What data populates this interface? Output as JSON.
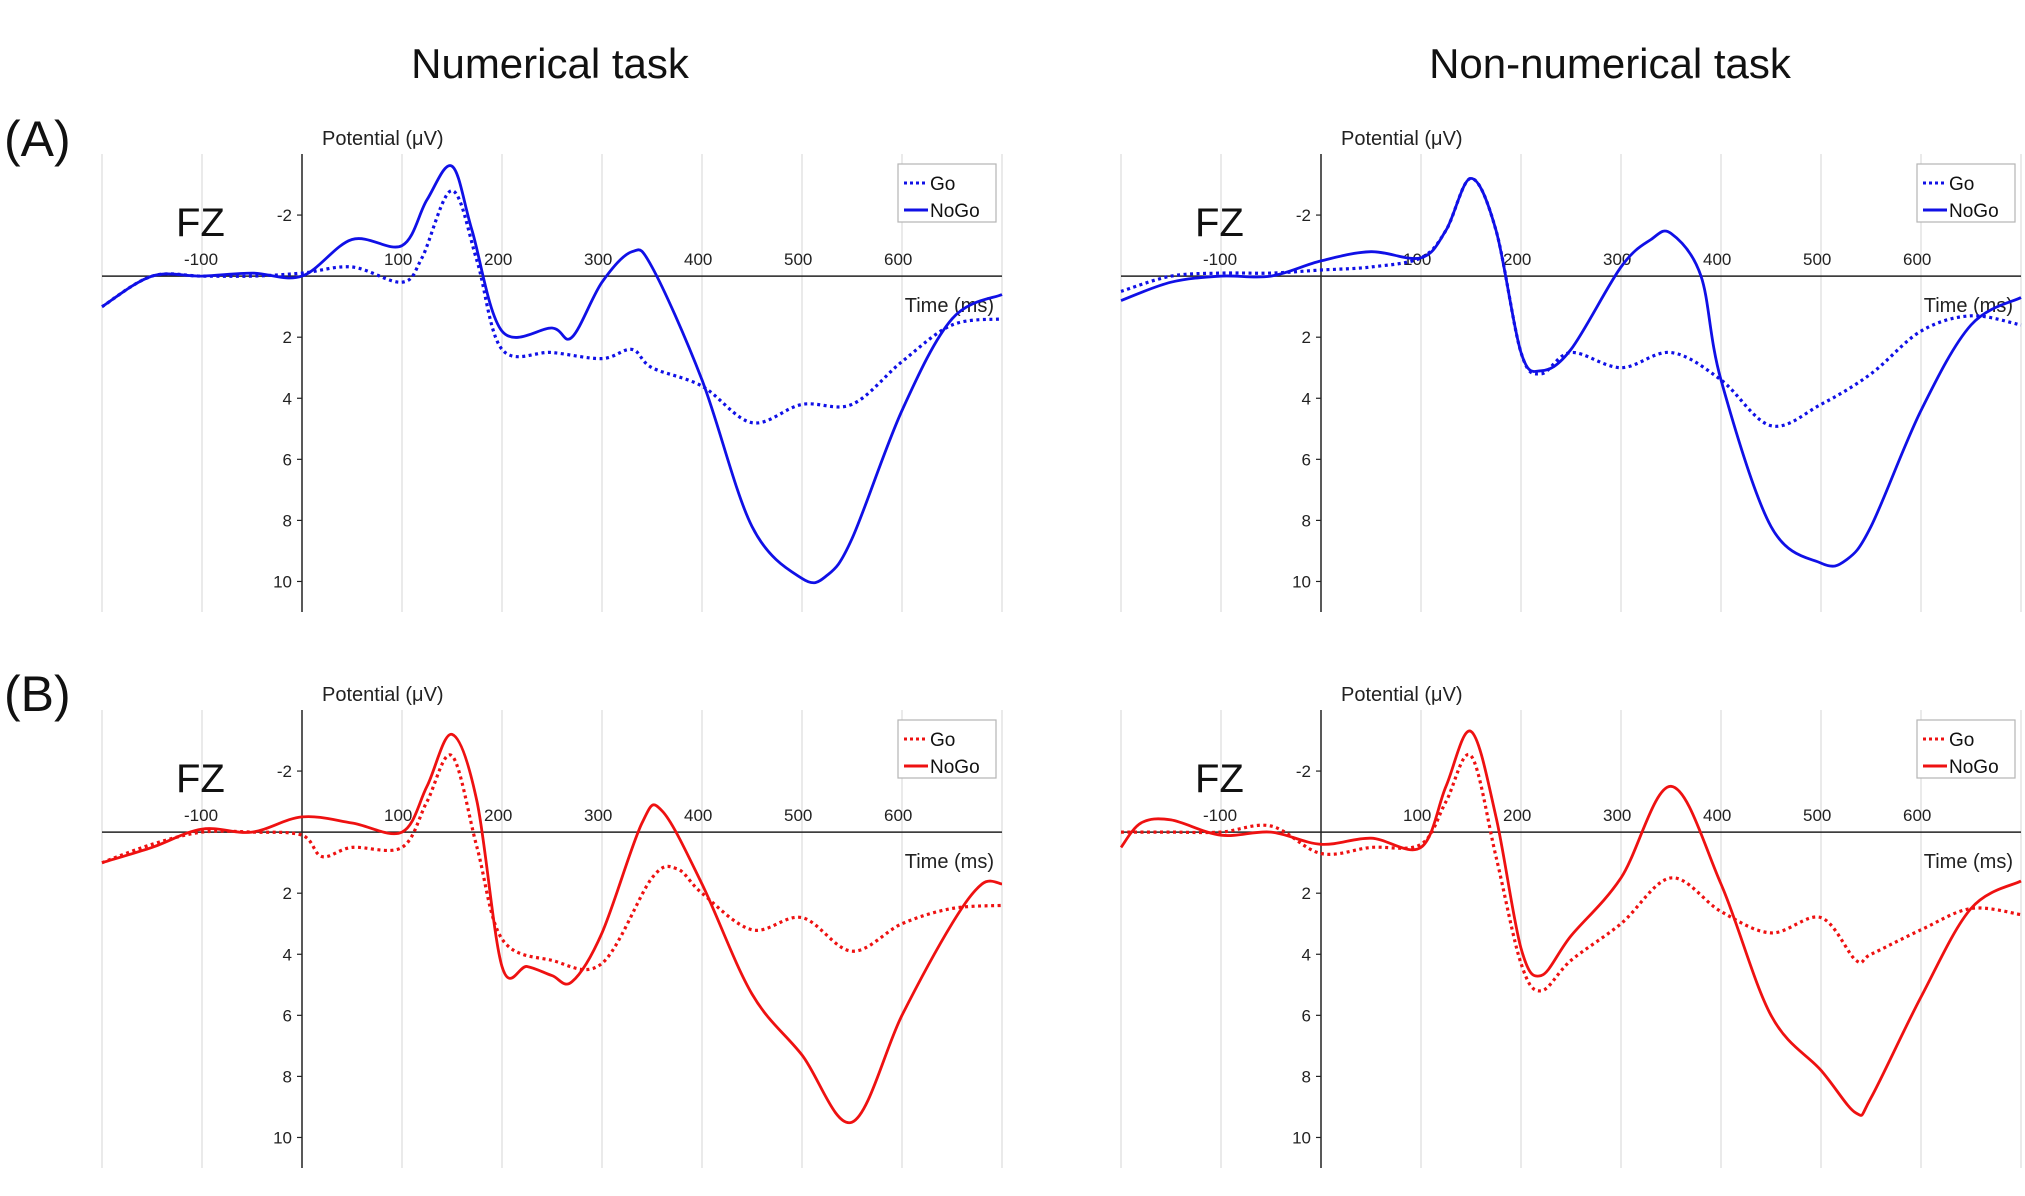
{
  "figure": {
    "columns": [
      "Numerical task",
      "Non-numerical task"
    ],
    "rows": [
      "(A)",
      "(B)"
    ]
  },
  "colors": {
    "row_a": "#1010e6",
    "row_b": "#ee1111",
    "axis": "#222222",
    "grid": "#dcdcdc"
  },
  "chart_data": [
    {
      "id": "A-numerical",
      "type": "line",
      "row": "(A)",
      "column": "Numerical task",
      "channel": "FZ",
      "xlabel": "Time (ms)",
      "ylabel": "Potential (μV)",
      "x_ticks": [
        -100,
        100,
        200,
        300,
        400,
        500,
        600
      ],
      "y_ticks": [
        -2,
        2,
        4,
        6,
        8,
        10
      ],
      "xlim": [
        -200,
        700
      ],
      "ylim": [
        -4,
        11
      ],
      "y_inverted": true,
      "grid": "vertical",
      "legend": "top-right",
      "series": [
        {
          "name": "Go",
          "style": "dotted",
          "x": [
            -200,
            -150,
            -100,
            -50,
            0,
            50,
            100,
            120,
            150,
            175,
            200,
            250,
            300,
            330,
            350,
            400,
            450,
            500,
            550,
            600,
            650,
            700
          ],
          "y": [
            1,
            0,
            0,
            0,
            -0.1,
            -0.3,
            0.2,
            -0.6,
            -2.8,
            -0.5,
            2.4,
            2.5,
            2.7,
            2.4,
            3,
            3.6,
            4.8,
            4.2,
            4.2,
            2.8,
            1.6,
            1.4
          ]
        },
        {
          "name": "NoGo",
          "style": "solid",
          "x": [
            -200,
            -150,
            -100,
            -50,
            0,
            50,
            100,
            125,
            150,
            170,
            200,
            250,
            270,
            300,
            330,
            350,
            400,
            450,
            500,
            525,
            550,
            600,
            650,
            700
          ],
          "y": [
            1,
            0,
            0,
            -0.1,
            0,
            -1.2,
            -1,
            -2.5,
            -3.6,
            -1.5,
            1.8,
            1.7,
            2,
            0.2,
            -0.8,
            -0.3,
            3.4,
            8.2,
            9.9,
            9.8,
            8.6,
            4.4,
            1.4,
            0.6
          ]
        }
      ]
    },
    {
      "id": "A-nonnumerical",
      "type": "line",
      "row": "(A)",
      "column": "Non-numerical task",
      "channel": "FZ",
      "xlabel": "Time (ms)",
      "ylabel": "Potential (μV)",
      "x_ticks": [
        -100,
        100,
        200,
        300,
        400,
        500,
        600
      ],
      "y_ticks": [
        -2,
        2,
        4,
        6,
        8,
        10
      ],
      "xlim": [
        -200,
        700
      ],
      "ylim": [
        -4,
        11
      ],
      "y_inverted": true,
      "grid": "vertical",
      "legend": "top-right",
      "series": [
        {
          "name": "Go",
          "style": "dotted",
          "x": [
            -200,
            -150,
            -100,
            -50,
            0,
            50,
            100,
            125,
            150,
            175,
            200,
            220,
            250,
            300,
            350,
            400,
            450,
            500,
            550,
            600,
            650,
            700
          ],
          "y": [
            0.5,
            0,
            -0.1,
            -0.1,
            -0.2,
            -0.3,
            -0.6,
            -1.5,
            -3.2,
            -1.5,
            2.5,
            3.2,
            2.5,
            3,
            2.5,
            3.4,
            4.9,
            4.2,
            3.2,
            1.8,
            1.3,
            1.6
          ]
        },
        {
          "name": "NoGo",
          "style": "solid",
          "x": [
            -200,
            -150,
            -100,
            -50,
            0,
            50,
            100,
            125,
            150,
            175,
            200,
            220,
            250,
            300,
            330,
            350,
            380,
            400,
            450,
            500,
            525,
            550,
            600,
            650,
            700
          ],
          "y": [
            0.8,
            0.2,
            0,
            0,
            -0.5,
            -0.8,
            -0.6,
            -1.5,
            -3.2,
            -1.5,
            2.5,
            3.1,
            2.4,
            -0.3,
            -1.2,
            -1.4,
            0,
            3.4,
            8.2,
            9.4,
            9.3,
            8.2,
            4.4,
            1.6,
            0.7
          ]
        }
      ]
    },
    {
      "id": "B-numerical",
      "type": "line",
      "row": "(B)",
      "column": "Numerical task",
      "channel": "FZ",
      "xlabel": "Time (ms)",
      "ylabel": "Potential (μV)",
      "x_ticks": [
        -100,
        100,
        200,
        300,
        400,
        500,
        600
      ],
      "y_ticks": [
        -2,
        2,
        4,
        6,
        8,
        10
      ],
      "xlim": [
        -200,
        700
      ],
      "ylim": [
        -4,
        11
      ],
      "y_inverted": true,
      "grid": "vertical",
      "legend": "top-right",
      "series": [
        {
          "name": "Go",
          "style": "dotted",
          "x": [
            -200,
            -150,
            -100,
            -50,
            0,
            20,
            50,
            100,
            125,
            150,
            175,
            200,
            250,
            300,
            350,
            375,
            400,
            450,
            500,
            550,
            600,
            650,
            700
          ],
          "y": [
            1,
            0.4,
            0,
            0,
            0.1,
            0.8,
            0.5,
            0.5,
            -1,
            -2.5,
            0.5,
            3.5,
            4.2,
            4.3,
            1.5,
            1.2,
            2,
            3.2,
            2.8,
            3.9,
            3,
            2.5,
            2.4
          ]
        },
        {
          "name": "NoGo",
          "style": "solid",
          "x": [
            -200,
            -150,
            -100,
            -50,
            0,
            50,
            100,
            125,
            150,
            175,
            200,
            225,
            250,
            270,
            300,
            340,
            360,
            400,
            450,
            500,
            550,
            600,
            650,
            680,
            700
          ],
          "y": [
            1,
            0.5,
            -0.1,
            0,
            -0.5,
            -0.3,
            0,
            -1.5,
            -3.2,
            -1,
            4.4,
            4.4,
            4.7,
            4.9,
            3.3,
            -0.3,
            -0.7,
            1.7,
            5.3,
            7.3,
            9.5,
            6,
            3,
            1.7,
            1.7
          ]
        }
      ]
    },
    {
      "id": "B-nonnumerical",
      "type": "line",
      "row": "(B)",
      "column": "Non-numerical task",
      "channel": "FZ",
      "xlabel": "Time (ms)",
      "ylabel": "Potential (μV)",
      "x_ticks": [
        -100,
        100,
        200,
        300,
        400,
        500,
        600
      ],
      "y_ticks": [
        -2,
        2,
        4,
        6,
        8,
        10
      ],
      "xlim": [
        -200,
        700
      ],
      "ylim": [
        -4,
        11
      ],
      "y_inverted": true,
      "grid": "vertical",
      "legend": "top-right",
      "series": [
        {
          "name": "Go",
          "style": "dotted",
          "x": [
            -200,
            -150,
            -100,
            -50,
            0,
            50,
            100,
            125,
            150,
            175,
            200,
            220,
            250,
            300,
            350,
            400,
            450,
            500,
            535,
            550,
            600,
            650,
            700
          ],
          "y": [
            0,
            0,
            0,
            -0.2,
            0.7,
            0.5,
            0.4,
            -1,
            -2.5,
            0.8,
            4.3,
            5.2,
            4.2,
            3,
            1.5,
            2.6,
            3.3,
            2.8,
            4.2,
            4,
            3.2,
            2.5,
            2.7
          ]
        },
        {
          "name": "NoGo",
          "style": "solid",
          "x": [
            -200,
            -180,
            -150,
            -100,
            -50,
            0,
            50,
            100,
            125,
            150,
            175,
            200,
            220,
            250,
            300,
            350,
            400,
            450,
            500,
            535,
            550,
            600,
            650,
            700
          ],
          "y": [
            0.5,
            -0.3,
            -0.4,
            0.1,
            0,
            0.4,
            0.2,
            0.5,
            -1.5,
            -3.3,
            -0.5,
            3.8,
            4.7,
            3.4,
            1.5,
            -1.5,
            1.7,
            6,
            7.8,
            9.2,
            8.7,
            5.4,
            2.5,
            1.6
          ]
        }
      ]
    }
  ]
}
